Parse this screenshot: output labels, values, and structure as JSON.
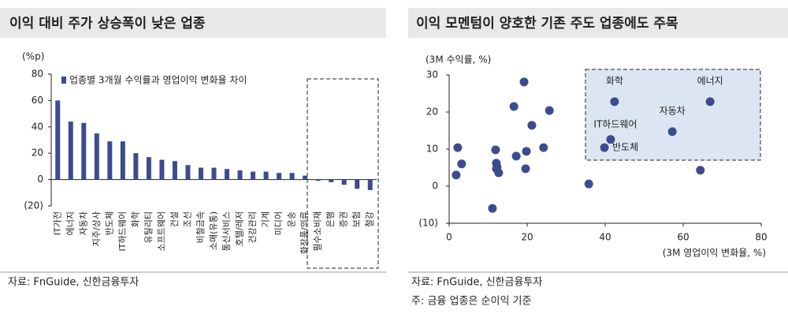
{
  "chart_data": [
    {
      "type": "bar",
      "title": "이익 대비 주가 상승폭이 낮은 업종",
      "y_label": "(%p)",
      "source": "자료: FnGuide, 신한금융투자",
      "categories": [
        "IT가전",
        "에너지",
        "자동차",
        "지주/상사",
        "반도체",
        "IT하드웨어",
        "화학",
        "유틸리티",
        "소프트웨어",
        "건설",
        "조선",
        "비철금속",
        "소매(유통)",
        "통신서비스",
        "호텔/레저",
        "건강관리",
        "기계",
        "미디어",
        "운송",
        "화장품/의류",
        "필수소비재",
        "은행",
        "증권",
        "보험",
        "철강"
      ],
      "series": [
        {
          "name": "업종별 3개월 수익률과 영업이익 변화율 차이",
          "color": "#3d4b8e",
          "values": [
            60,
            44,
            43,
            35,
            29,
            29,
            20,
            17,
            15,
            14,
            11,
            9,
            9,
            8,
            7,
            6,
            6,
            5,
            5,
            3,
            -1,
            -2,
            -4,
            -7,
            -8
          ]
        }
      ],
      "ylim": [
        -20,
        80
      ],
      "yticks": [
        {
          "value": -20,
          "label": "(20)"
        },
        0,
        20,
        40,
        60,
        80
      ],
      "legend": "top-left"
    },
    {
      "type": "scatter",
      "title": "이익 모멘텀이 양호한 기존 주도 업종에도 주목",
      "y_label": "(3M 수익률, %)",
      "x_label": "(3M 영업이익 변화율, %)",
      "source": "자료: FnGuide, 신한금융투자",
      "note": "주: 금융 업종은 순이익 기준",
      "color": "#3d4b8e",
      "x": [
        2.2,
        1.8,
        3.2,
        19.2,
        16.6,
        25.7,
        21.2,
        11.9,
        17.2,
        19.8,
        24.2,
        12.1,
        12.3,
        12.1,
        12.7,
        19.6,
        11.1,
        35.8,
        64.4,
        42.4,
        66.9,
        57.2,
        41.4,
        39.8
      ],
      "values": [
        10.4,
        3.0,
        6.0,
        28.1,
        21.5,
        20.4,
        16.4,
        9.8,
        8.1,
        9.4,
        10.4,
        6.2,
        5.1,
        4.7,
        3.6,
        4.7,
        -6.0,
        0.6,
        4.3,
        22.8,
        22.8,
        14.7,
        12.6,
        10.4
      ],
      "labels": [
        null,
        null,
        null,
        null,
        null,
        null,
        null,
        null,
        null,
        null,
        null,
        null,
        null,
        null,
        null,
        null,
        null,
        null,
        null,
        "화학",
        "에너지",
        "자동차",
        "IT하드웨어",
        "반도체"
      ],
      "xlim": [
        0,
        80
      ],
      "xticks": [
        0,
        20,
        40,
        60,
        80
      ],
      "ylim": [
        -10,
        30
      ],
      "yticks": [
        {
          "value": -10,
          "label": "(10)"
        },
        0,
        10,
        20,
        30
      ]
    }
  ]
}
